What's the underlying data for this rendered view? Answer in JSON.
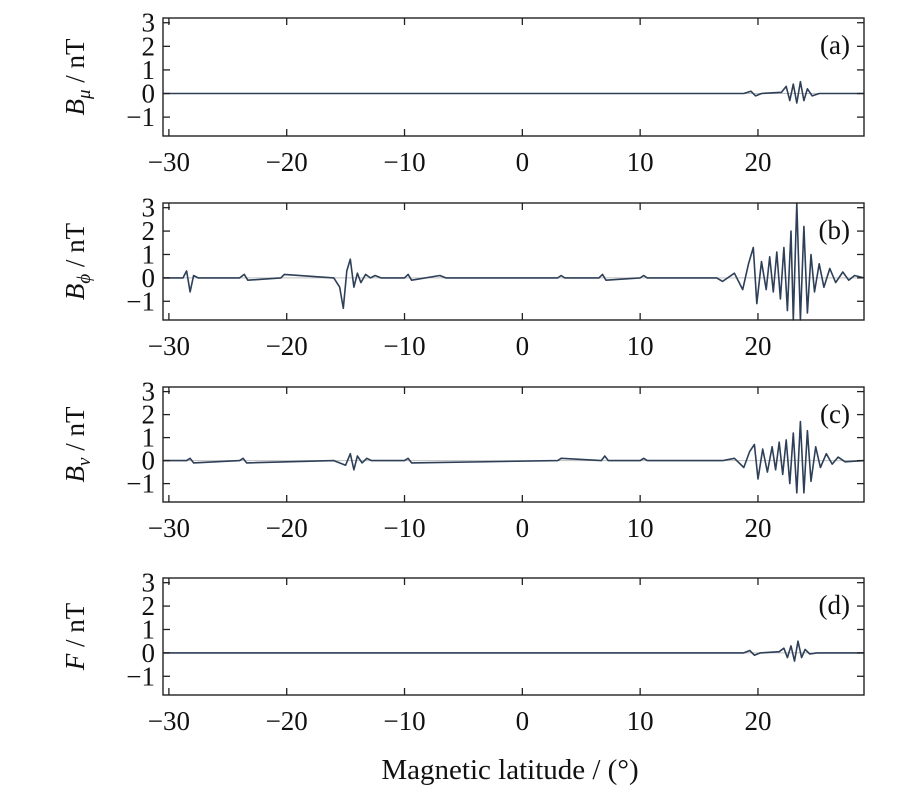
{
  "chart_data": {
    "type": "line",
    "xlabel": "Magnetic latitude / (°)",
    "xlim": [
      -30.5,
      29
    ],
    "x_ticks": [
      -30,
      -20,
      -10,
      0,
      10,
      20
    ],
    "x_tick_labels": [
      "−30",
      "−20",
      "−10",
      "0",
      "10",
      "20"
    ],
    "y_ticks": [
      -1,
      0,
      1,
      2,
      3
    ],
    "y_tick_labels": [
      "−1",
      "0",
      "1",
      "2",
      "3"
    ],
    "line_color": "#2e3f58",
    "panels": [
      {
        "id": "a",
        "tag": "(a)",
        "ylabel_symbol": "B",
        "ylabel_subscript": "μ",
        "ylabel_unit": " / nT",
        "ylim": [
          -1.8,
          3.2
        ],
        "series": [
          {
            "x": [
              -30.5,
              18.8,
              19.4,
              19.8,
              20.3,
              22.0,
              22.4,
              22.7,
              23.0,
              23.3,
              23.6,
              23.9,
              24.2,
              24.6,
              25.2,
              29.0
            ],
            "y": [
              0,
              0,
              0.1,
              -0.1,
              0,
              0.05,
              0.3,
              -0.3,
              0.4,
              -0.4,
              0.5,
              -0.3,
              0.2,
              -0.1,
              0,
              0
            ]
          }
        ]
      },
      {
        "id": "b",
        "tag": "(b)",
        "ylabel_symbol": "B",
        "ylabel_subscript": "ϕ",
        "ylabel_unit": " / nT",
        "ylim": [
          -1.8,
          3.2
        ],
        "series": [
          {
            "x": [
              -30.5,
              -28.8,
              -28.5,
              -28.2,
              -27.9,
              -27.5,
              -24.0,
              -23.6,
              -23.3,
              -20.5,
              -20.2,
              -16.0,
              -15.5,
              -15.2,
              -14.9,
              -14.6,
              -14.3,
              -14.0,
              -13.7,
              -13.3,
              -12.9,
              -12.5,
              -12.0,
              -10.0,
              -9.7,
              -9.4,
              -7.0,
              -6.5,
              3.0,
              3.3,
              3.6,
              6.5,
              6.8,
              7.1,
              10.0,
              10.3,
              10.6,
              16.5,
              17.0,
              18.0,
              18.7,
              19.2,
              19.6,
              19.9,
              20.3,
              20.7,
              21.0,
              21.3,
              21.6,
              21.9,
              22.2,
              22.5,
              22.8,
              23.0,
              23.3,
              23.6,
              23.9,
              24.2,
              24.5,
              24.8,
              25.2,
              25.6,
              26.1,
              26.6,
              27.2,
              27.7,
              28.2,
              29.0
            ],
            "y": [
              0,
              0,
              0.3,
              -0.6,
              0.1,
              0,
              0,
              0.15,
              -0.1,
              0,
              0.15,
              0,
              -0.4,
              -1.3,
              0.3,
              0.8,
              -0.4,
              0.2,
              -0.2,
              0.15,
              0,
              0.1,
              0,
              0,
              0.15,
              -0.1,
              0.1,
              0,
              0,
              0.1,
              0,
              0,
              0.15,
              -0.1,
              0,
              0.1,
              0,
              0,
              -0.15,
              0.2,
              -0.5,
              0.6,
              1.3,
              -1.1,
              0.7,
              -0.5,
              0.9,
              -0.6,
              1.1,
              -0.9,
              1.3,
              -1.4,
              2.0,
              -1.8,
              3.2,
              -1.8,
              2.2,
              -1.5,
              1.0,
              -0.6,
              0.6,
              -0.4,
              0.4,
              -0.2,
              0.25,
              -0.1,
              0.1,
              0
            ]
          }
        ]
      },
      {
        "id": "c",
        "tag": "(c)",
        "ylabel_symbol": "B",
        "ylabel_subscript": "v",
        "ylabel_unit": " / nT",
        "ylim": [
          -1.8,
          3.2
        ],
        "series": [
          {
            "x": [
              -30.5,
              -28.5,
              -28.2,
              -27.9,
              -24.0,
              -23.7,
              -23.4,
              -16.0,
              -15.0,
              -14.6,
              -14.3,
              -14.0,
              -13.6,
              -13.2,
              -12.8,
              -10.0,
              -9.7,
              -9.4,
              3.0,
              3.3,
              6.7,
              7.0,
              7.3,
              10.0,
              10.3,
              10.6,
              17.0,
              18.0,
              18.8,
              19.3,
              19.7,
              20.0,
              20.4,
              20.8,
              21.2,
              21.5,
              21.8,
              22.1,
              22.4,
              22.7,
              23.0,
              23.3,
              23.6,
              23.9,
              24.2,
              24.5,
              24.9,
              25.3,
              25.8,
              26.3,
              26.8,
              27.4,
              29.0
            ],
            "y": [
              0,
              0,
              0.1,
              -0.1,
              0,
              0.1,
              -0.1,
              0,
              -0.2,
              0.3,
              -0.4,
              0.2,
              -0.1,
              0.1,
              0,
              0,
              0.1,
              -0.1,
              0,
              0.1,
              0,
              0.2,
              0,
              0,
              0.1,
              0,
              0,
              0.1,
              -0.3,
              0.4,
              0.7,
              -0.8,
              0.5,
              -0.5,
              0.6,
              -0.4,
              0.8,
              -0.6,
              0.9,
              -1.0,
              1.2,
              -1.4,
              1.7,
              -1.4,
              1.3,
              -0.9,
              0.6,
              -0.3,
              0.3,
              -0.15,
              0.15,
              -0.05,
              0
            ]
          }
        ]
      },
      {
        "id": "d",
        "tag": "(d)",
        "ylabel_symbol": "F",
        "ylabel_subscript": "",
        "ylabel_unit": " / nT",
        "ylim": [
          -1.8,
          3.2
        ],
        "series": [
          {
            "x": [
              -30.5,
              18.8,
              19.3,
              19.7,
              20.2,
              21.8,
              22.2,
              22.5,
              22.8,
              23.1,
              23.4,
              23.7,
              24.0,
              24.4,
              25.0,
              29.0
            ],
            "y": [
              0,
              0,
              0.1,
              -0.1,
              0,
              0.05,
              0.2,
              -0.2,
              0.3,
              -0.35,
              0.5,
              -0.2,
              0.15,
              -0.05,
              0,
              0
            ]
          }
        ]
      }
    ]
  }
}
